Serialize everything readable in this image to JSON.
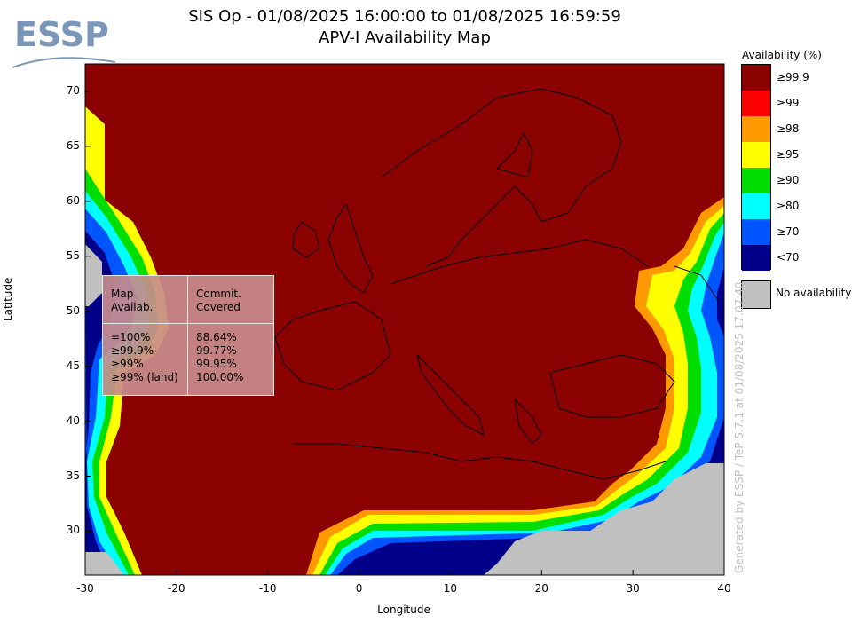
{
  "header": {
    "title_line1": "SIS Op - 01/08/2025 16:00:00 to 01/08/2025 16:59:59",
    "title_line2": "APV-I Availability Map",
    "logo_text": "ESSP"
  },
  "map": {
    "xlabel": "Longitude",
    "ylabel": "Latitude",
    "xlim": [
      -30,
      40
    ],
    "ylim": [
      26,
      72.5
    ],
    "xticks": [
      "-30",
      "-20",
      "-10",
      "0",
      "10",
      "20",
      "30",
      "40"
    ],
    "yticks": [
      "70",
      "65",
      "60",
      "55",
      "50",
      "45",
      "40",
      "35",
      "30"
    ],
    "background_color": "#8b0000"
  },
  "legend": {
    "title": "Availability (%)",
    "items": [
      {
        "label": "≥99.9",
        "color": "#8b0000"
      },
      {
        "label": "≥99",
        "color": "#ff0000"
      },
      {
        "label": "≥98",
        "color": "#ff9900"
      },
      {
        "label": "≥95",
        "color": "#ffff00"
      },
      {
        "label": "≥90",
        "color": "#00dd00"
      },
      {
        "label": "≥80",
        "color": "#00ffff"
      },
      {
        "label": "≥70",
        "color": "#0055ff"
      },
      {
        "label": "<70",
        "color": "#00008b"
      }
    ],
    "no_availability": {
      "label": "No availability",
      "color": "#c0c0c0"
    }
  },
  "stats_table": {
    "header_col1": [
      "Map",
      "Availab."
    ],
    "header_col2": [
      "Commit.",
      "Covered"
    ],
    "rows": [
      {
        "map": "=100%",
        "covered": "88.64%"
      },
      {
        "map": "≥99.9%",
        "covered": "99.77%"
      },
      {
        "map": "≥99%",
        "covered": "99.95%"
      },
      {
        "map": "≥99% (land)",
        "covered": "100.00%"
      }
    ]
  },
  "credit": "Generated by ESSP / TeP 5.7.1 at 01/08/2025 17:07:40"
}
